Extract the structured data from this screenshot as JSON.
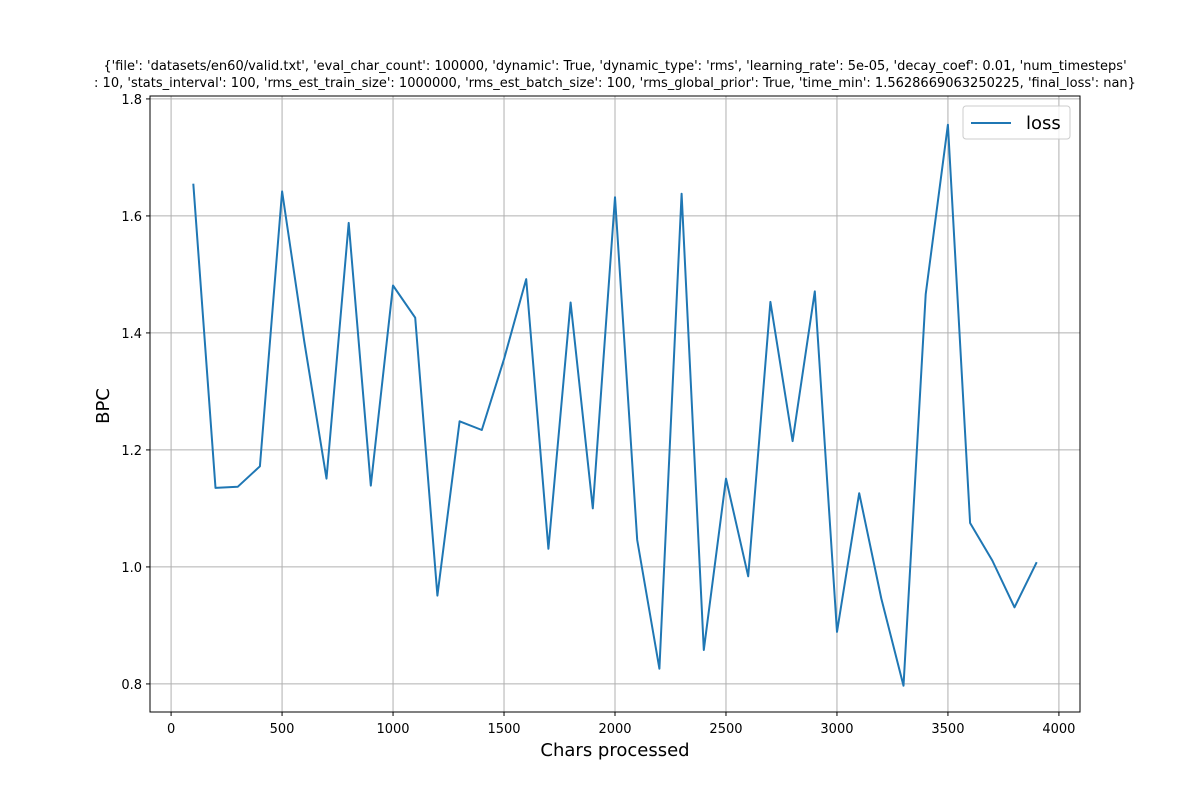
{
  "chart_data": {
    "type": "line",
    "title_lines": [
      "{'file': 'datasets/en60/valid.txt', 'eval_char_count': 100000, 'dynamic': True, 'dynamic_type': 'rms', 'learning_rate': 5e-05, 'decay_coef': 0.01, 'num_timesteps'",
      ": 10, 'stats_interval': 100, 'rms_est_train_size': 1000000, 'rms_est_batch_size': 100, 'rms_global_prior': True, 'time_min': 1.5628669063250225, 'final_loss': nan}"
    ],
    "xlabel": "Chars processed",
    "ylabel": "BPC",
    "xlim": [
      -95,
      4095
    ],
    "ylim": [
      0.752,
      1.805
    ],
    "xticks": [
      0,
      500,
      1000,
      1500,
      2000,
      2500,
      3000,
      3500,
      4000
    ],
    "yticks": [
      0.8,
      1.0,
      1.2,
      1.4,
      1.6,
      1.8
    ],
    "xtick_labels": [
      "0",
      "500",
      "1000",
      "1500",
      "2000",
      "2500",
      "3000",
      "3500",
      "4000"
    ],
    "ytick_labels": [
      "0.8",
      "1.0",
      "1.2",
      "1.4",
      "1.6",
      "1.8"
    ],
    "grid": true,
    "legend_position": "upper right",
    "series": [
      {
        "name": "loss",
        "color": "#1f77b4",
        "x": [
          100,
          200,
          300,
          400,
          500,
          600,
          700,
          800,
          900,
          1000,
          1100,
          1200,
          1300,
          1400,
          1500,
          1600,
          1700,
          1800,
          1900,
          2000,
          2100,
          2200,
          2300,
          2400,
          2500,
          2600,
          2700,
          2800,
          2900,
          3000,
          3100,
          3200,
          3300,
          3400,
          3500,
          3600,
          3700,
          3800,
          3900
        ],
        "y": [
          1.655,
          1.135,
          1.137,
          1.172,
          1.642,
          1.385,
          1.151,
          1.588,
          1.139,
          1.481,
          1.426,
          0.951,
          1.249,
          1.234,
          1.355,
          1.492,
          1.031,
          1.452,
          1.1,
          1.632,
          1.046,
          0.826,
          1.638,
          0.858,
          1.151,
          0.984,
          1.453,
          1.215,
          1.471,
          0.889,
          1.126,
          0.946,
          0.797,
          1.466,
          1.756,
          1.075,
          1.011,
          0.931,
          1.008
        ]
      }
    ]
  }
}
